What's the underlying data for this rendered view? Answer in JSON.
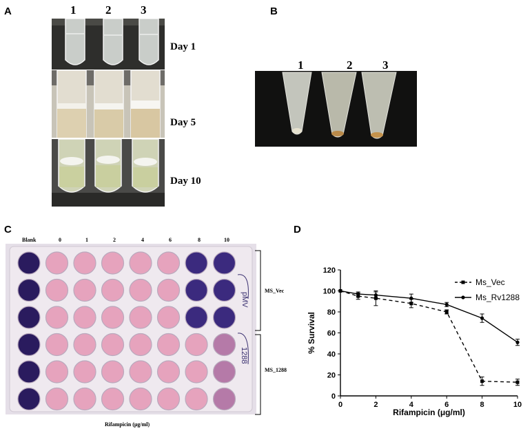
{
  "panels": {
    "a": "A",
    "b": "B",
    "c": "C",
    "d": "D"
  },
  "panel_a": {
    "tube_numbers": [
      "1",
      "2",
      "3"
    ],
    "days": [
      "Day 1",
      "Day 5",
      "Day 10"
    ]
  },
  "panel_b": {
    "tube_numbers": [
      "1",
      "2",
      "3"
    ]
  },
  "panel_c": {
    "columns": [
      "Blank",
      "0",
      "1",
      "2",
      "4",
      "6",
      "8",
      "10"
    ],
    "row_groups": [
      "MS_Vec",
      "MS_1288"
    ],
    "xlabel": "Rifampicin (μg/ml)",
    "handwriting": [
      "pMV",
      "1288"
    ],
    "well_colors": {
      "blank": "#2a1b5e",
      "pink": "#e6a3bd",
      "purple": "#3b2a7e",
      "mauve": "#b57aa8"
    }
  },
  "chart_data": {
    "type": "line",
    "xlabel": "Rifampicin (μg/ml)",
    "ylabel": "% Survival",
    "xlim": [
      0,
      10
    ],
    "ylim": [
      0,
      120
    ],
    "xticks": [
      "0",
      "2",
      "4",
      "6",
      "8",
      "10"
    ],
    "yticks": [
      "0",
      "20",
      "40",
      "60",
      "80",
      "100",
      "120"
    ],
    "legend_position": "top-right",
    "series": [
      {
        "name": "Ms_Vec",
        "style": "dashed",
        "marker": "square",
        "x": [
          0,
          1,
          2,
          4,
          6,
          8,
          10
        ],
        "y": [
          100,
          95,
          93,
          88,
          80,
          14,
          13
        ],
        "err": [
          0,
          3,
          7,
          4,
          2,
          4,
          3
        ]
      },
      {
        "name": "Ms_Rv1288",
        "style": "solid",
        "marker": "circle",
        "x": [
          0,
          1,
          2,
          4,
          6,
          8,
          10
        ],
        "y": [
          100,
          97,
          96,
          93,
          87,
          74,
          51
        ],
        "err": [
          0,
          2,
          3,
          4,
          2,
          4,
          3
        ]
      }
    ]
  }
}
